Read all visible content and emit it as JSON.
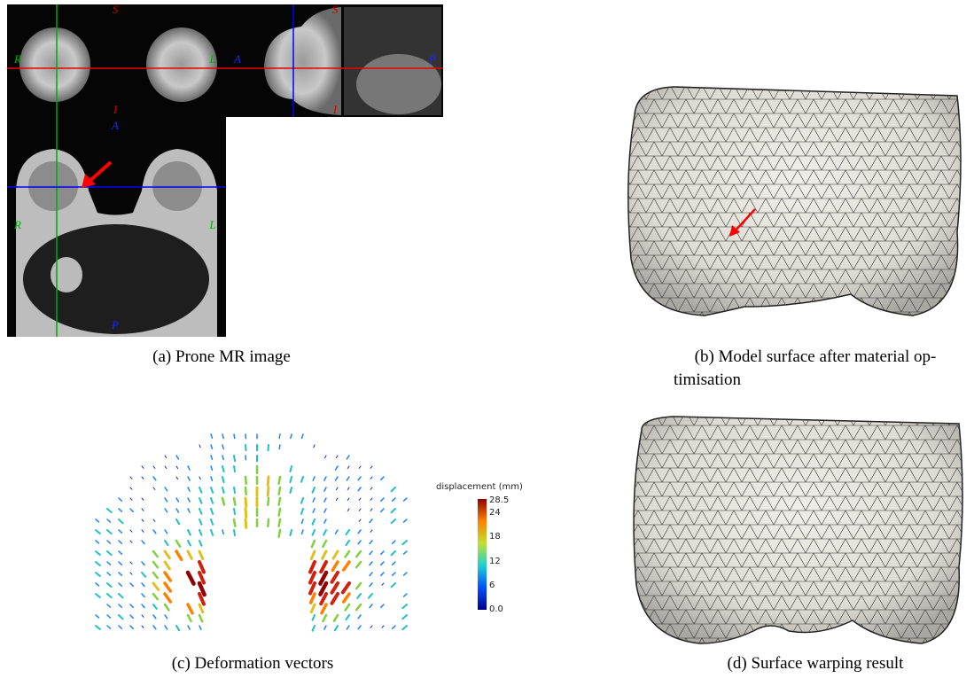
{
  "panels": [
    {
      "caption": "(a) Prone MR image",
      "labels": [
        "S",
        "R",
        "L",
        "A",
        "S",
        "P",
        "I",
        "I",
        "A",
        "R",
        "L",
        "P"
      ]
    },
    {
      "caption_lines": [
        "(b) Model surface after material op-",
        "timisation"
      ]
    },
    {
      "caption": "(c) Deformation vectors",
      "colorbar": {
        "title": "displacement (mm)",
        "ticks": [
          "28.5",
          "24",
          "18",
          "12",
          "6",
          "0.0"
        ]
      }
    },
    {
      "caption": "(d) Surface warping result"
    }
  ]
}
